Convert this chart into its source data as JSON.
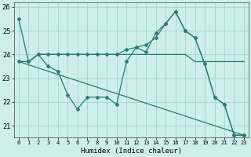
{
  "line1_x": [
    0,
    1,
    2,
    3,
    4,
    5,
    6,
    7,
    8,
    9,
    10,
    11,
    12,
    13,
    14,
    15,
    16,
    17,
    18,
    19,
    20,
    21,
    22,
    23
  ],
  "line1_y": [
    25.5,
    23.7,
    24.0,
    23.5,
    23.3,
    22.3,
    21.7,
    22.2,
    22.2,
    22.2,
    21.9,
    23.7,
    24.3,
    24.1,
    24.9,
    25.3,
    25.8,
    25.0,
    24.7,
    23.6,
    22.2,
    21.9,
    20.6,
    20.6
  ],
  "line2_x": [
    0,
    1,
    2,
    3,
    4,
    5,
    6,
    7,
    8,
    9,
    10,
    11,
    12,
    13,
    14,
    15,
    16,
    17,
    18,
    19,
    20,
    21,
    22,
    23
  ],
  "line2_y": [
    23.7,
    23.7,
    24.0,
    24.0,
    24.0,
    24.0,
    24.0,
    24.0,
    24.0,
    24.0,
    24.0,
    24.0,
    24.0,
    24.0,
    24.0,
    24.0,
    24.0,
    24.0,
    23.7,
    23.7,
    23.7,
    23.7,
    23.7,
    23.7
  ],
  "line3_x": [
    0,
    1,
    2,
    3,
    4,
    5,
    6,
    7,
    8,
    9,
    10,
    11,
    12,
    13,
    14,
    15,
    16,
    17,
    18,
    19,
    20,
    21,
    22,
    23
  ],
  "line3_y": [
    23.7,
    23.7,
    24.0,
    24.0,
    24.0,
    24.0,
    24.0,
    24.0,
    24.0,
    24.0,
    24.0,
    24.2,
    24.3,
    24.4,
    24.7,
    25.3,
    25.8,
    25.0,
    24.7,
    23.6,
    22.2,
    21.9,
    20.6,
    20.6
  ],
  "line4_x": [
    0,
    23
  ],
  "line4_y": [
    23.7,
    20.6
  ],
  "color": "#2a7b6f",
  "bg_color": "#ceeee8",
  "grid_color": "#9ecfc7",
  "xlabel": "Humidex (Indice chaleur)",
  "ylim": [
    20.5,
    26.2
  ],
  "xlim": [
    -0.5,
    23.5
  ],
  "yticks": [
    21,
    22,
    23,
    24,
    25,
    26
  ],
  "xticks": [
    0,
    1,
    2,
    3,
    4,
    5,
    6,
    7,
    8,
    9,
    10,
    11,
    12,
    13,
    14,
    15,
    16,
    17,
    18,
    19,
    20,
    21,
    22,
    23
  ]
}
